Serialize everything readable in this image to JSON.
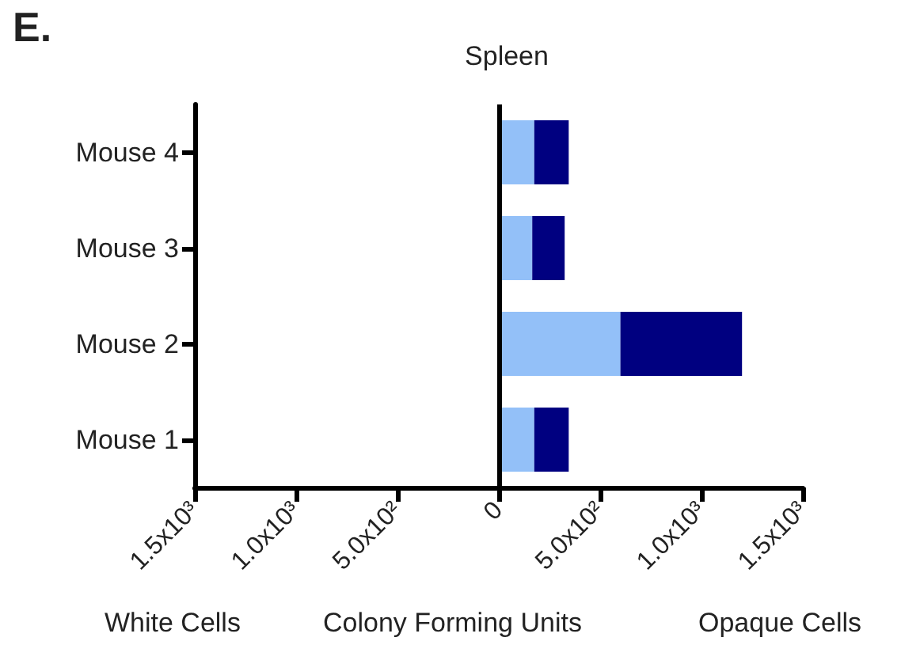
{
  "chart_data": {
    "type": "bar",
    "orientation": "horizontal",
    "stacked": true,
    "title": "Spleen",
    "xlabel": "Colony Forming Units",
    "annotations": [
      "E.",
      "White Cells",
      "Opaque Cells"
    ],
    "categories": [
      "Mouse 4",
      "Mouse 3",
      "Mouse 2",
      "Mouse 1"
    ],
    "series": [
      {
        "color": "#93c0f8",
        "values": [
          175,
          165,
          600,
          175
        ]
      },
      {
        "color": "#000080",
        "values": [
          170,
          160,
          600,
          170
        ]
      }
    ],
    "xlim": [
      -1500,
      1500
    ],
    "xticks": [
      {
        "value": -1500,
        "label": "1.5x10³"
      },
      {
        "value": -1000,
        "label": "1.0x10³"
      },
      {
        "value": -500,
        "label": "5.0x10²"
      },
      0,
      {
        "value": 500,
        "label": "5.0x10²"
      },
      {
        "value": 1000,
        "label": "1.0x10³"
      },
      {
        "value": 1500,
        "label": "1.5x10³"
      }
    ],
    "ref_lines": [
      {
        "axis": "x",
        "value": 0
      }
    ]
  }
}
